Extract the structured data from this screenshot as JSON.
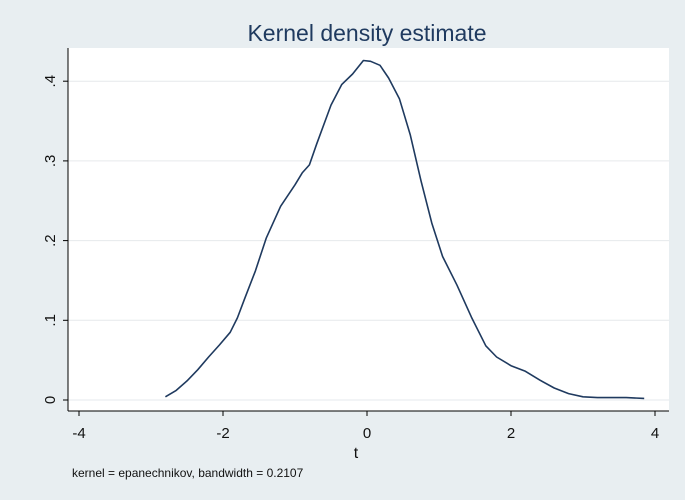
{
  "chart_data": {
    "type": "line",
    "title": "Kernel density estimate",
    "xlabel": "t",
    "ylabel": "",
    "note": "kernel = epanechnikov, bandwidth = 0.2107",
    "xlim": [
      -4,
      4
    ],
    "ylim": [
      0,
      0.4
    ],
    "xticks": [
      -4,
      -2,
      0,
      2,
      4
    ],
    "yticks": [
      0,
      0.1,
      0.2,
      0.3,
      0.4
    ],
    "xtick_labels": [
      "-4",
      "-2",
      "0",
      "2",
      "4"
    ],
    "ytick_labels": [
      "0",
      ".1",
      ".2",
      ".3",
      ".4"
    ],
    "grid": true,
    "line_color": "#1f3a5f",
    "series": [
      {
        "x": [
          -2.8,
          -2.65,
          -2.5,
          -2.35,
          -2.2,
          -2.05,
          -1.9,
          -1.8,
          -1.7,
          -1.55,
          -1.4,
          -1.2,
          -1.0,
          -0.9,
          -0.8,
          -0.7,
          -0.5,
          -0.35,
          -0.2,
          -0.05,
          0.05,
          0.18,
          0.3,
          0.45,
          0.6,
          0.75,
          0.9,
          1.05,
          1.25,
          1.45,
          1.65,
          1.8,
          2.0,
          2.2,
          2.4,
          2.6,
          2.8,
          3.0,
          3.2,
          3.4,
          3.6,
          3.85
        ],
        "y": [
          0.004,
          0.012,
          0.024,
          0.038,
          0.054,
          0.069,
          0.085,
          0.103,
          0.127,
          0.162,
          0.203,
          0.243,
          0.27,
          0.285,
          0.295,
          0.321,
          0.37,
          0.396,
          0.409,
          0.426,
          0.425,
          0.42,
          0.404,
          0.378,
          0.333,
          0.275,
          0.222,
          0.18,
          0.144,
          0.104,
          0.068,
          0.054,
          0.043,
          0.036,
          0.025,
          0.015,
          0.008,
          0.004,
          0.003,
          0.003,
          0.003,
          0.002
        ]
      }
    ]
  }
}
